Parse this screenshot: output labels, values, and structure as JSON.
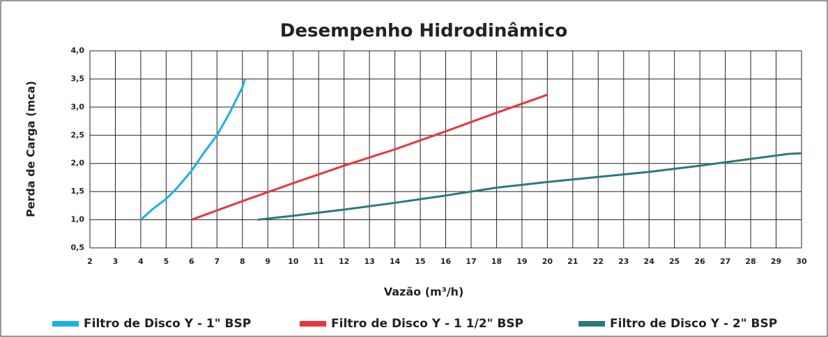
{
  "chart_data": {
    "type": "line",
    "title": "Desempenho Hidrodinâmico",
    "xlabel": "Vazão (m³/h)",
    "ylabel": "Perda de Carga  (mca)",
    "xlim": [
      2,
      30
    ],
    "xticks": [
      2,
      3,
      4,
      5,
      6,
      7,
      8,
      9,
      10,
      11,
      12,
      13,
      14,
      15,
      16,
      17,
      18,
      19,
      20,
      21,
      22,
      23,
      24,
      25,
      26,
      27,
      28,
      29,
      30
    ],
    "ylim": [
      0.5,
      4.0
    ],
    "yticks": [
      {
        "value": 0.5,
        "label": "0,5"
      },
      {
        "value": 1.0,
        "label": "1,0"
      },
      {
        "value": 1.5,
        "label": "1,5"
      },
      {
        "value": 2.0,
        "label": "2,0"
      },
      {
        "value": 2.5,
        "label": "2,5"
      },
      {
        "value": 3.0,
        "label": "3,0"
      },
      {
        "value": 3.5,
        "label": "3,5"
      },
      {
        "value": 4.0,
        "label": "4,0"
      }
    ],
    "grid": true,
    "legend": "bottom",
    "series": [
      {
        "name": "Filtro de Disco Y - 1\" BSP",
        "color": "#1ab0e8",
        "x": [
          4,
          4.5,
          5,
          5.4,
          6,
          6.5,
          7,
          7.5,
          8,
          8.1
        ],
        "values": [
          1.0,
          1.2,
          1.37,
          1.55,
          1.87,
          2.2,
          2.5,
          2.9,
          3.35,
          3.5
        ]
      },
      {
        "name": "Filtro de Disco Y - 1 1/2\" BSP",
        "color": "#e8343a",
        "x": [
          6,
          8,
          10,
          12,
          14,
          16,
          18,
          20
        ],
        "values": [
          1.0,
          1.33,
          1.65,
          1.96,
          2.25,
          2.57,
          2.9,
          3.22
        ]
      },
      {
        "name": "Filtro de Disco Y - 2\" BSP",
        "color": "#2a7a7a",
        "x": [
          8.6,
          10,
          12,
          14,
          16,
          18,
          20,
          22,
          24,
          26,
          28,
          29.5,
          30
        ],
        "values": [
          1.0,
          1.07,
          1.18,
          1.3,
          1.43,
          1.57,
          1.67,
          1.76,
          1.85,
          1.96,
          2.08,
          2.17,
          2.18
        ]
      }
    ]
  }
}
